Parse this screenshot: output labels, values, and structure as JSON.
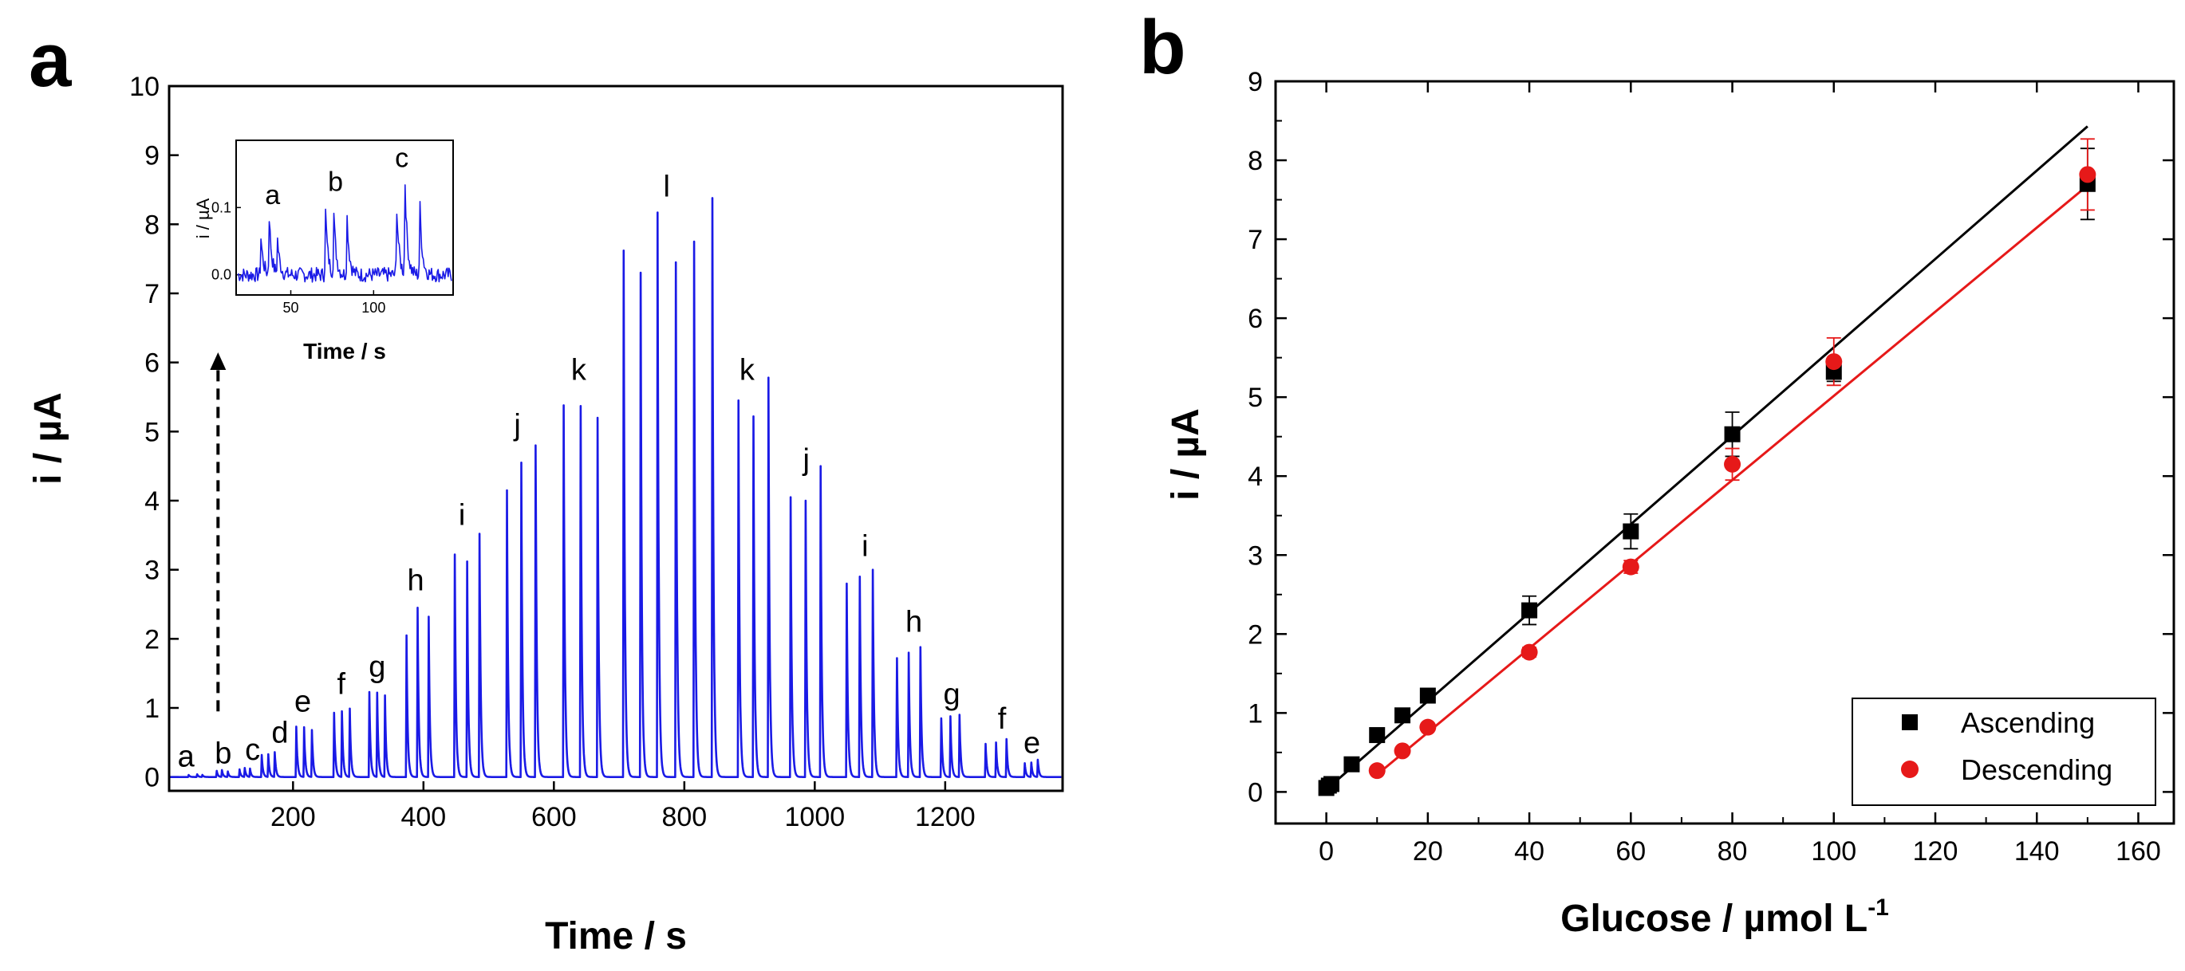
{
  "colors": {
    "trace": "#1a1ae6",
    "ascending": "#000000",
    "descending": "#e61919",
    "axis": "#000000"
  },
  "chart_data": [
    {
      "panel": "a",
      "type": "line",
      "xlabel": "Time / s",
      "ylabel": "i / µA",
      "xlim": [
        10,
        1380
      ],
      "ylim": [
        -0.2,
        10
      ],
      "xticks": [
        200,
        400,
        600,
        800,
        1000,
        1200
      ],
      "yticks": [
        0,
        1,
        2,
        3,
        4,
        5,
        6,
        7,
        8,
        9,
        10
      ],
      "peaks": [
        {
          "t": 40,
          "h": 0.03
        },
        {
          "t": 53,
          "h": 0.04
        },
        {
          "t": 61,
          "h": 0.03
        },
        {
          "t": 83,
          "h": 0.09
        },
        {
          "t": 91,
          "h": 0.1
        },
        {
          "t": 100,
          "h": 0.08
        },
        {
          "t": 118,
          "h": 0.11
        },
        {
          "t": 126,
          "h": 0.13
        },
        {
          "t": 134,
          "h": 0.12
        },
        {
          "t": 152,
          "h": 0.32
        },
        {
          "t": 162,
          "h": 0.33
        },
        {
          "t": 172,
          "h": 0.36
        },
        {
          "t": 205,
          "h": 0.73
        },
        {
          "t": 217,
          "h": 0.72
        },
        {
          "t": 229,
          "h": 0.68
        },
        {
          "t": 263,
          "h": 0.93
        },
        {
          "t": 275,
          "h": 0.95
        },
        {
          "t": 287,
          "h": 0.99
        },
        {
          "t": 317,
          "h": 1.23
        },
        {
          "t": 329,
          "h": 1.22
        },
        {
          "t": 341,
          "h": 1.18
        },
        {
          "t": 374,
          "h": 2.05
        },
        {
          "t": 391,
          "h": 2.45
        },
        {
          "t": 408,
          "h": 2.32
        },
        {
          "t": 448,
          "h": 3.22
        },
        {
          "t": 467,
          "h": 3.12
        },
        {
          "t": 486,
          "h": 3.52
        },
        {
          "t": 528,
          "h": 4.15
        },
        {
          "t": 550,
          "h": 4.55
        },
        {
          "t": 572,
          "h": 4.8
        },
        {
          "t": 615,
          "h": 5.38
        },
        {
          "t": 641,
          "h": 5.37
        },
        {
          "t": 667,
          "h": 5.2
        },
        {
          "t": 707,
          "h": 7.62
        },
        {
          "t": 733,
          "h": 7.3
        },
        {
          "t": 759,
          "h": 8.17
        },
        {
          "t": 787,
          "h": 7.45
        },
        {
          "t": 815,
          "h": 7.75
        },
        {
          "t": 843,
          "h": 8.38
        },
        {
          "t": 883,
          "h": 5.45
        },
        {
          "t": 906,
          "h": 5.22
        },
        {
          "t": 929,
          "h": 5.78
        },
        {
          "t": 963,
          "h": 4.05
        },
        {
          "t": 986,
          "h": 4.0
        },
        {
          "t": 1009,
          "h": 4.5
        },
        {
          "t": 1049,
          "h": 2.8
        },
        {
          "t": 1069,
          "h": 2.9
        },
        {
          "t": 1089,
          "h": 3.0
        },
        {
          "t": 1126,
          "h": 1.72
        },
        {
          "t": 1144,
          "h": 1.8
        },
        {
          "t": 1162,
          "h": 1.88
        },
        {
          "t": 1194,
          "h": 0.85
        },
        {
          "t": 1208,
          "h": 0.88
        },
        {
          "t": 1222,
          "h": 0.9
        },
        {
          "t": 1262,
          "h": 0.48
        },
        {
          "t": 1278,
          "h": 0.5
        },
        {
          "t": 1294,
          "h": 0.55
        },
        {
          "t": 1322,
          "h": 0.2
        },
        {
          "t": 1332,
          "h": 0.21
        },
        {
          "t": 1342,
          "h": 0.25
        }
      ],
      "annotations": [
        {
          "label": "a",
          "t": 36,
          "y": 0.15
        },
        {
          "label": "b",
          "t": 93,
          "y": 0.2
        },
        {
          "label": "c",
          "t": 138,
          "y": 0.25
        },
        {
          "label": "d",
          "t": 180,
          "y": 0.5
        },
        {
          "label": "e",
          "t": 215,
          "y": 0.95
        },
        {
          "label": "f",
          "t": 274,
          "y": 1.2
        },
        {
          "label": "g",
          "t": 329,
          "y": 1.45
        },
        {
          "label": "h",
          "t": 388,
          "y": 2.7
        },
        {
          "label": "i",
          "t": 459,
          "y": 3.65
        },
        {
          "label": "j",
          "t": 544,
          "y": 4.95
        },
        {
          "label": "k",
          "t": 638,
          "y": 5.75
        },
        {
          "label": "l",
          "t": 773,
          "y": 8.4
        },
        {
          "label": "k",
          "t": 896,
          "y": 5.75
        },
        {
          "label": "j",
          "t": 987,
          "y": 4.45
        },
        {
          "label": "i",
          "t": 1077,
          "y": 3.2
        },
        {
          "label": "h",
          "t": 1152,
          "y": 2.1
        },
        {
          "label": "g",
          "t": 1210,
          "y": 1.05
        },
        {
          "label": "f",
          "t": 1287,
          "y": 0.7
        },
        {
          "label": "e",
          "t": 1333,
          "y": 0.35
        }
      ],
      "arrow": {
        "t": 85,
        "from": 0.95,
        "to": 6.1
      },
      "inset": {
        "xlabel": "Time / s",
        "ylabel": "i / µA",
        "xlim": [
          17,
          148
        ],
        "ylim": [
          -0.03,
          0.2
        ],
        "xticks": [
          50,
          100
        ],
        "yticks": [
          0.0,
          0.1
        ],
        "ytick_labels": [
          "0.0",
          "0.1"
        ],
        "peaks": [
          {
            "t": 32,
            "h": 0.055
          },
          {
            "t": 37,
            "h": 0.085
          },
          {
            "t": 42,
            "h": 0.05
          },
          {
            "t": 71,
            "h": 0.093
          },
          {
            "t": 76,
            "h": 0.088
          },
          {
            "t": 84,
            "h": 0.085
          },
          {
            "t": 114,
            "h": 0.1
          },
          {
            "t": 119,
            "h": 0.135
          },
          {
            "t": 128,
            "h": 0.1
          }
        ],
        "annotations": [
          {
            "label": "a",
            "t": 39,
            "y": 0.105
          },
          {
            "label": "b",
            "t": 77,
            "y": 0.125
          },
          {
            "label": "c",
            "t": 117,
            "y": 0.16
          }
        ]
      }
    },
    {
      "panel": "b",
      "type": "scatter",
      "xlabel": "Glucose / µmol L",
      "xlabel_sup": "-1",
      "ylabel": "i / µA",
      "xlim": [
        -10,
        167
      ],
      "ylim": [
        -0.4,
        9
      ],
      "xticks": [
        0,
        20,
        40,
        60,
        80,
        100,
        120,
        140,
        160
      ],
      "yticks": [
        0,
        1,
        2,
        3,
        4,
        5,
        6,
        7,
        8,
        9
      ],
      "series": [
        {
          "name": "Ascending",
          "marker": "square",
          "x": [
            0,
            0.5,
            1,
            5,
            10,
            15,
            20,
            40,
            60,
            80,
            100,
            150
          ],
          "y": [
            0.05,
            0.08,
            0.1,
            0.35,
            0.72,
            0.97,
            1.22,
            2.3,
            3.3,
            4.53,
            5.32,
            7.7
          ],
          "err": [
            0.02,
            0.02,
            0.02,
            0.03,
            0.04,
            0.05,
            0.05,
            0.18,
            0.22,
            0.28,
            0.12,
            0.45
          ],
          "fit": {
            "x": [
              0,
              150
            ],
            "y": [
              0.03,
              8.43
            ]
          }
        },
        {
          "name": "Descending",
          "marker": "circle",
          "x": [
            10,
            15,
            20,
            40,
            60,
            80,
            100,
            150
          ],
          "y": [
            0.27,
            0.52,
            0.82,
            1.77,
            2.85,
            4.15,
            5.45,
            7.82
          ],
          "err": [
            0.03,
            0.03,
            0.04,
            0.06,
            0.08,
            0.2,
            0.3,
            0.45
          ],
          "fit": {
            "x": [
              10,
              150
            ],
            "y": [
              0.22,
              7.68
            ]
          }
        }
      ],
      "legend": "bottom-right"
    }
  ]
}
